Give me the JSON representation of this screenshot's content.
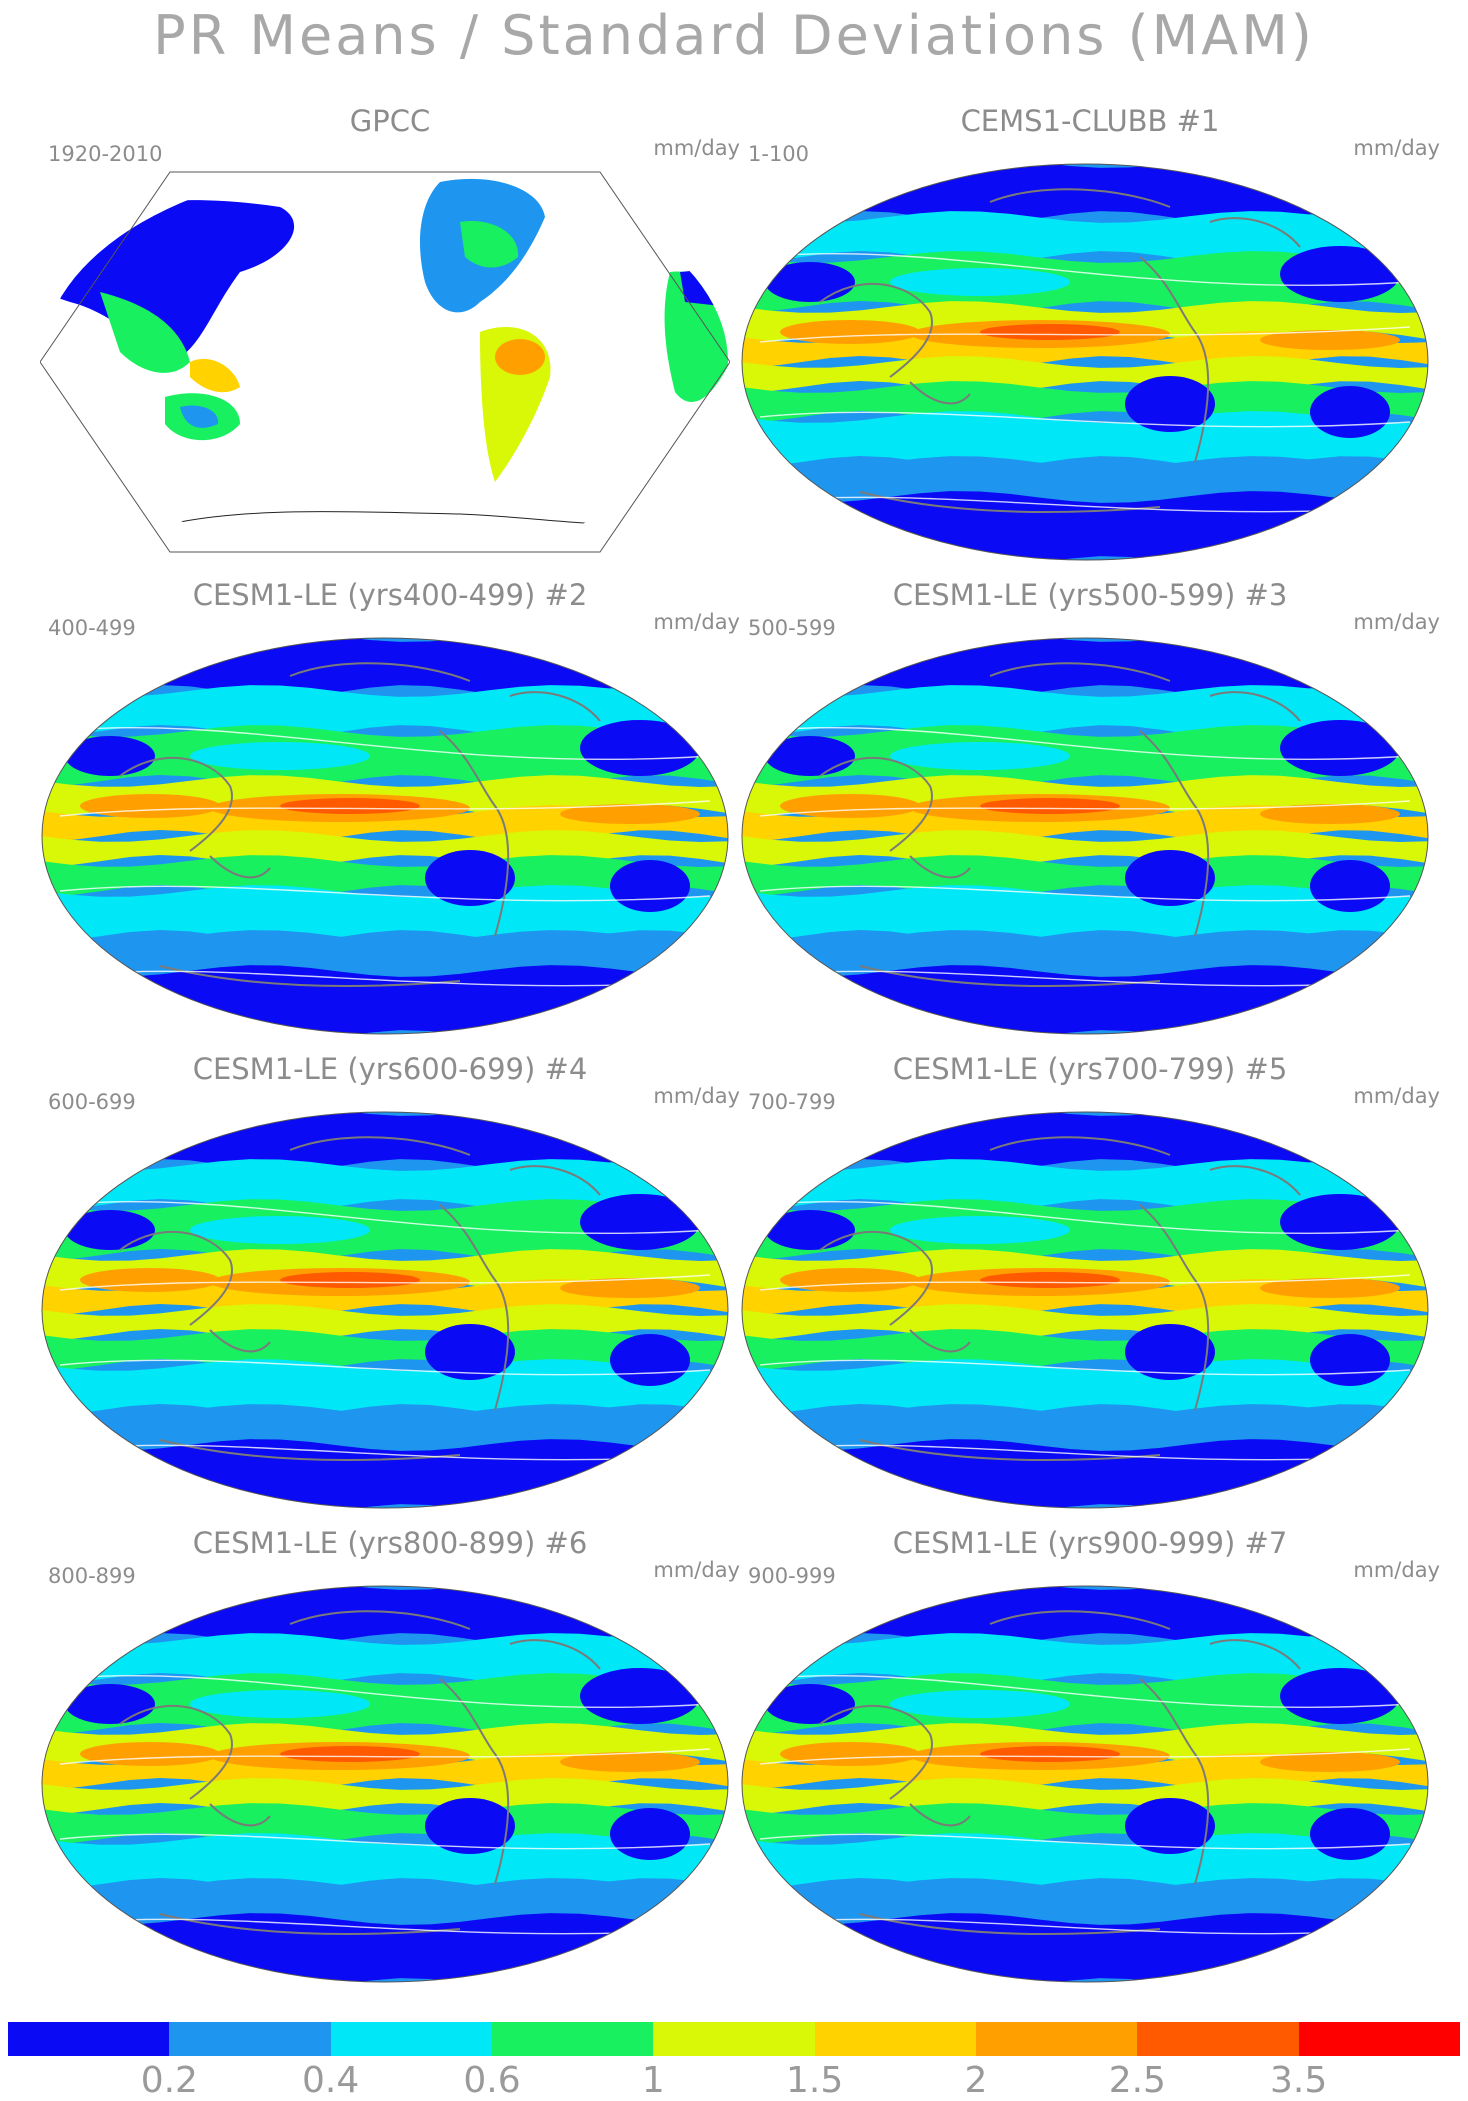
{
  "title": "PR Means / Standard Deviations (MAM)",
  "unit": "mm/day",
  "panels": [
    {
      "id": "gpcc",
      "title": "GPCC",
      "period": "1920-2010",
      "kind": "obs"
    },
    {
      "id": "p1",
      "title": "CEMS1-CLUBB        #1",
      "period": "1-100",
      "kind": "model"
    },
    {
      "id": "p2",
      "title": "CESM1-LE (yrs400-499) #2",
      "period": "400-499",
      "kind": "model"
    },
    {
      "id": "p3",
      "title": "CESM1-LE (yrs500-599) #3",
      "period": "500-599",
      "kind": "model"
    },
    {
      "id": "p4",
      "title": "CESM1-LE (yrs600-699) #4",
      "period": "600-699",
      "kind": "model"
    },
    {
      "id": "p5",
      "title": "CESM1-LE (yrs700-799) #5",
      "period": "700-799",
      "kind": "model"
    },
    {
      "id": "p6",
      "title": "CESM1-LE (yrs800-899) #6",
      "period": "800-899",
      "kind": "model"
    },
    {
      "id": "p7",
      "title": "CESM1-LE (yrs900-999) #7",
      "period": "900-999",
      "kind": "model"
    }
  ],
  "colorbar": {
    "colors": [
      "#0a0af5",
      "#1e96f0",
      "#00e8f8",
      "#18f060",
      "#d8f808",
      "#ffd200",
      "#ffa000",
      "#ff5a00",
      "#ff0000"
    ],
    "labels": [
      "0.2",
      "0.4",
      "0.6",
      "1",
      "1.5",
      "2",
      "2.5",
      "3.5"
    ]
  }
}
